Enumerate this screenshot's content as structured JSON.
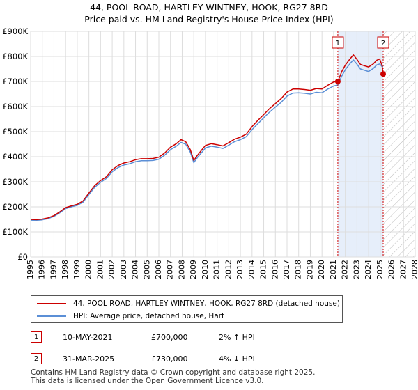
{
  "title_line1": "44, POOL ROAD, HARTLEY WINTNEY, HOOK, RG27 8RD",
  "title_line2": "Price paid vs. HM Land Registry's House Price Index (HPI)",
  "chart_data": {
    "type": "line",
    "xlim": [
      1995,
      2028
    ],
    "ylim": [
      0,
      900000
    ],
    "x_ticks": [
      1995,
      1996,
      1997,
      1998,
      1999,
      2000,
      2001,
      2002,
      2003,
      2004,
      2005,
      2006,
      2007,
      2008,
      2009,
      2010,
      2011,
      2012,
      2013,
      2014,
      2015,
      2016,
      2017,
      2018,
      2019,
      2020,
      2021,
      2022,
      2023,
      2024,
      2025,
      2026,
      2027,
      2028
    ],
    "y_ticks": [
      0,
      100000,
      200000,
      300000,
      400000,
      500000,
      600000,
      700000,
      800000,
      900000
    ],
    "y_tick_labels": [
      "£0",
      "£100K",
      "£200K",
      "£300K",
      "£400K",
      "£500K",
      "£600K",
      "£700K",
      "£800K",
      "£900K"
    ],
    "series": [
      {
        "name": "44, POOL ROAD, HARTLEY WINTNEY, HOOK, RG27 8RD (detached house)",
        "color": "#cc0000",
        "x": [
          1995.0,
          1995.5,
          1996.0,
          1996.5,
          1997.0,
          1997.5,
          1998.0,
          1998.5,
          1999.0,
          1999.5,
          2000.0,
          2000.5,
          2001.0,
          2001.5,
          2002.0,
          2002.5,
          2003.0,
          2003.5,
          2004.0,
          2004.5,
          2005.0,
          2005.5,
          2006.0,
          2006.5,
          2007.0,
          2007.5,
          2007.9,
          2008.3,
          2008.7,
          2009.0,
          2009.3,
          2009.7,
          2010.0,
          2010.5,
          2011.0,
          2011.5,
          2012.0,
          2012.5,
          2013.0,
          2013.5,
          2014.0,
          2014.5,
          2015.0,
          2015.5,
          2016.0,
          2016.5,
          2017.0,
          2017.5,
          2018.0,
          2018.5,
          2019.0,
          2019.5,
          2020.0,
          2020.5,
          2021.0,
          2021.36,
          2021.7,
          2022.0,
          2022.4,
          2022.7,
          2023.0,
          2023.3,
          2023.7,
          2024.0,
          2024.4,
          2024.7,
          2024.95,
          2025.15,
          2025.25
        ],
        "values": [
          150000,
          149000,
          151000,
          156000,
          165000,
          180000,
          197000,
          204000,
          210000,
          224000,
          255000,
          285000,
          305000,
          320000,
          348000,
          365000,
          375000,
          380000,
          388000,
          392000,
          392000,
          393000,
          398000,
          415000,
          438000,
          452000,
          468000,
          460000,
          428000,
          385000,
          405000,
          428000,
          445000,
          452000,
          448000,
          443000,
          456000,
          470000,
          478000,
          490000,
          520000,
          545000,
          568000,
          592000,
          612000,
          632000,
          658000,
          670000,
          670000,
          668000,
          665000,
          672000,
          670000,
          685000,
          698000,
          700000,
          740000,
          765000,
          790000,
          806000,
          788000,
          768000,
          762000,
          758000,
          770000,
          785000,
          790000,
          765000,
          730000
        ]
      },
      {
        "name": "HPI: Average price, detached house, Hart",
        "color": "#5b8fd6",
        "x": [
          1995.0,
          1995.5,
          1996.0,
          1996.5,
          1997.0,
          1997.5,
          1998.0,
          1998.5,
          1999.0,
          1999.5,
          2000.0,
          2000.5,
          2001.0,
          2001.5,
          2002.0,
          2002.5,
          2003.0,
          2003.5,
          2004.0,
          2004.5,
          2005.0,
          2005.5,
          2006.0,
          2006.5,
          2007.0,
          2007.5,
          2007.9,
          2008.3,
          2008.7,
          2009.0,
          2009.3,
          2009.7,
          2010.0,
          2010.5,
          2011.0,
          2011.5,
          2012.0,
          2012.5,
          2013.0,
          2013.5,
          2014.0,
          2014.5,
          2015.0,
          2015.5,
          2016.0,
          2016.5,
          2017.0,
          2017.5,
          2018.0,
          2018.5,
          2019.0,
          2019.5,
          2020.0,
          2020.5,
          2021.0,
          2021.36,
          2021.7,
          2022.0,
          2022.4,
          2022.7,
          2023.0,
          2023.3,
          2023.7,
          2024.0,
          2024.4,
          2024.7,
          2024.95,
          2025.15,
          2025.25
        ],
        "values": [
          147000,
          146000,
          148000,
          153000,
          162000,
          176000,
          193000,
          200000,
          206000,
          219000,
          249000,
          278000,
          298000,
          313000,
          340000,
          357000,
          367000,
          372000,
          380000,
          384000,
          384000,
          385000,
          390000,
          406000,
          428000,
          442000,
          457000,
          450000,
          418000,
          376000,
          396000,
          418000,
          435000,
          442000,
          438000,
          433000,
          446000,
          460000,
          468000,
          480000,
          508000,
          532000,
          555000,
          578000,
          598000,
          617000,
          642000,
          654000,
          655000,
          653000,
          650000,
          657000,
          655000,
          670000,
          682000,
          686000,
          722000,
          747000,
          771000,
          786000,
          769000,
          750000,
          744000,
          740000,
          752000,
          766000,
          770000,
          760000,
          760000
        ]
      }
    ],
    "annotations": [
      {
        "label": "1",
        "x": 2021.36,
        "value": 700000
      },
      {
        "label": "2",
        "x": 2025.25,
        "value": 730000
      }
    ],
    "shaded_ranges": [
      [
        2021.36,
        2025.25
      ]
    ],
    "hatched_range_from": 2025.25,
    "grid": true
  },
  "legend": {
    "property_label": "44, POOL ROAD, HARTLEY WINTNEY, HOOK, RG27 8RD (detached house)",
    "hpi_label": "HPI: Average price, detached house, Hart"
  },
  "transactions": [
    {
      "num": "1",
      "date": "10-MAY-2021",
      "price": "£700,000",
      "hpi": "2% ↑ HPI"
    },
    {
      "num": "2",
      "date": "31-MAR-2025",
      "price": "£730,000",
      "hpi": "4% ↓ HPI"
    }
  ],
  "footer_line1": "Contains HM Land Registry data © Crown copyright and database right 2025.",
  "footer_line2": "This data is licensed under the Open Government Licence v3.0."
}
